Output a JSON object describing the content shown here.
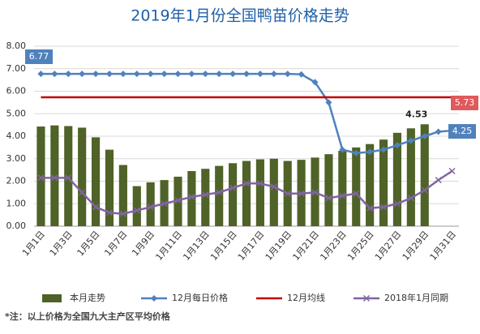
{
  "chart_data": {
    "type": "combo",
    "title": "2019年1月份全国鸭苗价格走势",
    "categories": [
      "1月1日",
      null,
      "1月3日",
      null,
      "1月5日",
      null,
      "1月7日",
      null,
      "1月9日",
      null,
      "1月11日",
      null,
      "1月13日",
      null,
      "1月15日",
      null,
      "1月17日",
      null,
      "1月19日",
      null,
      "1月21日",
      null,
      "1月23日",
      null,
      "1月25日",
      null,
      "1月27日",
      null,
      "1月29日",
      null,
      "1月31日"
    ],
    "ylim": [
      0,
      8
    ],
    "yticks": [
      {
        "value": 0,
        "label": "0.00"
      },
      {
        "value": 1,
        "label": "1.00"
      },
      {
        "value": 2,
        "label": "2.00"
      },
      {
        "value": 3,
        "label": "3.00"
      },
      {
        "value": 4,
        "label": "4.00"
      },
      {
        "value": 5,
        "label": "5.00"
      },
      {
        "value": 6,
        "label": "6.00"
      },
      {
        "value": 7,
        "label": "7.00"
      },
      {
        "value": 8,
        "label": "8.00"
      }
    ],
    "grid": true,
    "series": [
      {
        "name": "本月走势",
        "type": "bar",
        "color": "#4f6228",
        "values": [
          4.43,
          4.48,
          4.45,
          4.38,
          3.95,
          3.4,
          2.72,
          1.78,
          1.95,
          2.05,
          2.2,
          2.45,
          2.55,
          2.68,
          2.8,
          2.9,
          2.97,
          3.0,
          2.9,
          2.95,
          3.05,
          3.2,
          3.35,
          3.5,
          3.65,
          3.85,
          4.15,
          4.35,
          4.53,
          null,
          null
        ]
      },
      {
        "name": "12月每日价格",
        "type": "line",
        "marker": "diamond",
        "color": "#4f81bd",
        "values": [
          6.77,
          6.77,
          6.77,
          6.77,
          6.77,
          6.77,
          6.77,
          6.77,
          6.77,
          6.77,
          6.77,
          6.77,
          6.77,
          6.77,
          6.77,
          6.77,
          6.77,
          6.77,
          6.77,
          6.75,
          6.4,
          5.5,
          3.4,
          3.25,
          3.3,
          3.4,
          3.6,
          3.8,
          4.0,
          4.2,
          4.25
        ]
      },
      {
        "name": "12月均线",
        "type": "line",
        "color": "#c00000",
        "values": [
          5.73,
          5.73,
          5.73,
          5.73,
          5.73,
          5.73,
          5.73,
          5.73,
          5.73,
          5.73,
          5.73,
          5.73,
          5.73,
          5.73,
          5.73,
          5.73,
          5.73,
          5.73,
          5.73,
          5.73,
          5.73,
          5.73,
          5.73,
          5.73,
          5.73,
          5.73,
          5.73,
          5.73,
          5.73,
          5.73,
          5.73
        ]
      },
      {
        "name": "2018年1月同期",
        "type": "line",
        "marker": "x",
        "color": "#8064a2",
        "values": [
          2.15,
          2.15,
          2.15,
          1.5,
          0.85,
          0.6,
          0.55,
          0.7,
          0.85,
          1.0,
          1.15,
          1.3,
          1.4,
          1.5,
          1.7,
          1.9,
          1.9,
          1.75,
          1.45,
          1.45,
          1.5,
          1.25,
          1.35,
          1.45,
          0.8,
          0.85,
          1.0,
          1.25,
          1.6,
          2.05,
          2.45
        ]
      }
    ],
    "footnote": "*注：以上价格为全国九大主产区平均价格"
  }
}
